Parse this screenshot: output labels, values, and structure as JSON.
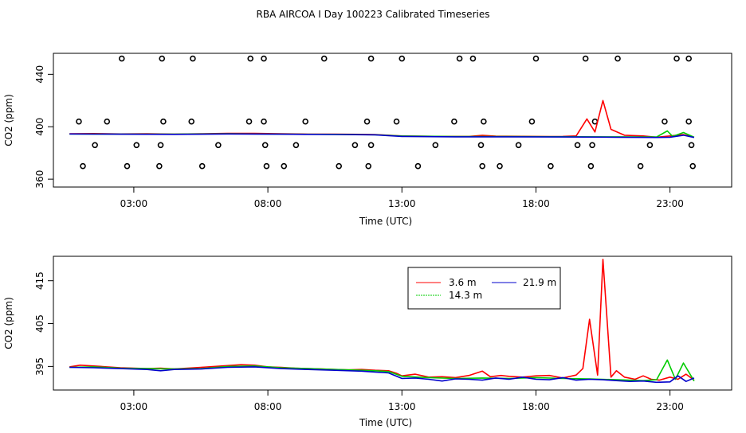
{
  "title": "RBA AIRCOA I  Day 100223  Calibrated Timeseries",
  "chart_data": [
    {
      "type": "line",
      "name": "top-panel",
      "xlabel": "Time (UTC)",
      "ylabel": "CO2 (ppm)",
      "xlim": [
        0,
        25.3
      ],
      "ylim": [
        354,
        456
      ],
      "xticks": [
        {
          "v": 3,
          "label": "03:00"
        },
        {
          "v": 8,
          "label": "08:00"
        },
        {
          "v": 13,
          "label": "13:00"
        },
        {
          "v": 18,
          "label": "18:00"
        },
        {
          "v": 23,
          "label": "23:00"
        }
      ],
      "yticks": [
        {
          "v": 360,
          "label": "360"
        },
        {
          "v": 400,
          "label": "400"
        },
        {
          "v": 440,
          "label": "440"
        }
      ],
      "series": [
        {
          "name": "3.6 m",
          "color": "#ff0000",
          "x": [
            0.6,
            1.5,
            2.5,
            3.5,
            4.5,
            5.5,
            6.5,
            7.5,
            8.5,
            9.5,
            10.5,
            11.5,
            12.0,
            12.5,
            13.0,
            13.5,
            14.5,
            15.5,
            16.0,
            16.5,
            17.5,
            18.5,
            19.0,
            19.5,
            19.9,
            20.2,
            20.5,
            20.8,
            21.3,
            22.0,
            22.5,
            23.0,
            23.5,
            23.9
          ],
          "y": [
            394.7,
            394.8,
            394.5,
            394.6,
            394.4,
            394.6,
            394.9,
            395.0,
            394.7,
            394.4,
            394.4,
            394.2,
            394.0,
            393.5,
            393.0,
            392.8,
            392.6,
            392.6,
            393.4,
            392.8,
            392.7,
            392.5,
            392.6,
            393.0,
            406.0,
            396.0,
            420.0,
            398.0,
            393.5,
            393.0,
            392.0,
            393.0,
            394.0,
            392.0
          ]
        },
        {
          "name": "14.3 m",
          "color": "#00cc00",
          "x": [
            0.6,
            2.5,
            4.5,
            6.5,
            8.5,
            10.5,
            12.0,
            13.0,
            15.0,
            17.0,
            19.0,
            21.0,
            22.5,
            22.9,
            23.1,
            23.5,
            23.9
          ],
          "y": [
            394.5,
            394.4,
            394.3,
            394.6,
            394.4,
            394.2,
            393.9,
            392.9,
            392.5,
            392.5,
            392.4,
            392.3,
            392.2,
            396.8,
            392.6,
            395.6,
            392.0
          ]
        },
        {
          "name": "21.9 m",
          "color": "#0000cc",
          "x": [
            0.6,
            2.5,
            4.5,
            6.5,
            8.5,
            10.5,
            12.0,
            13.0,
            15.0,
            17.0,
            19.0,
            21.0,
            22.5,
            23.0,
            23.5,
            23.9
          ],
          "y": [
            394.5,
            394.3,
            394.2,
            394.5,
            394.3,
            394.1,
            393.8,
            392.6,
            392.3,
            392.3,
            392.2,
            392.0,
            391.8,
            392.0,
            393.5,
            391.8
          ]
        }
      ],
      "points": {
        "name": "calibration-samples",
        "x": [
          0.95,
          2.0,
          4.1,
          5.15,
          7.3,
          7.85,
          9.4,
          11.7,
          12.8,
          14.95,
          16.05,
          17.85,
          20.2,
          22.8,
          23.7,
          1.55,
          3.1,
          4.0,
          6.15,
          7.9,
          9.05,
          11.25,
          11.85,
          14.25,
          15.95,
          17.35,
          19.55,
          20.1,
          22.25,
          23.8,
          1.1,
          2.75,
          3.95,
          5.55,
          7.95,
          8.6,
          10.65,
          11.75,
          13.6,
          16.0,
          16.65,
          18.55,
          20.05,
          21.9,
          23.85,
          2.55,
          4.05,
          5.2,
          7.35,
          7.85,
          10.1,
          11.85,
          13.0,
          15.15,
          15.65,
          18.0,
          19.85,
          21.05,
          23.25,
          23.7
        ],
        "y": [
          404,
          404,
          404,
          404,
          404,
          404,
          404,
          404,
          404,
          404,
          404,
          404,
          404,
          404,
          404,
          386,
          386,
          386,
          386,
          386,
          386,
          386,
          386,
          386,
          386,
          386,
          386,
          386,
          386,
          386,
          370,
          370,
          370,
          370,
          370,
          370,
          370,
          370,
          370,
          370,
          370,
          370,
          370,
          370,
          370,
          452,
          452,
          452,
          452,
          452,
          452,
          452,
          452,
          452,
          452,
          452,
          452,
          452,
          452,
          452
        ]
      }
    },
    {
      "type": "line",
      "name": "bottom-panel",
      "xlabel": "Time (UTC)",
      "ylabel": "CO2 (ppm)",
      "xlim": [
        0,
        25.3
      ],
      "ylim": [
        389.5,
        420.7
      ],
      "xticks": [
        {
          "v": 3,
          "label": "03:00"
        },
        {
          "v": 8,
          "label": "08:00"
        },
        {
          "v": 13,
          "label": "13:00"
        },
        {
          "v": 18,
          "label": "18:00"
        },
        {
          "v": 23,
          "label": "23:00"
        }
      ],
      "yticks": [
        {
          "v": 395,
          "label": "395"
        },
        {
          "v": 405,
          "label": "405"
        },
        {
          "v": 415,
          "label": "415"
        }
      ],
      "legend": {
        "position": "top-right",
        "entries": [
          "3.6 m",
          "21.9 m",
          "14.3 m"
        ]
      },
      "series": [
        {
          "name": "3.6 m",
          "color": "#ff0000",
          "x": [
            0.6,
            1.0,
            1.5,
            2.0,
            2.5,
            3.0,
            3.5,
            4.0,
            4.5,
            5.0,
            5.5,
            6.0,
            6.5,
            7.0,
            7.5,
            8.0,
            8.5,
            9.0,
            9.5,
            10.0,
            10.5,
            11.0,
            11.5,
            12.0,
            12.5,
            12.8,
            13.0,
            13.5,
            14.0,
            14.5,
            15.0,
            15.5,
            16.0,
            16.3,
            16.7,
            17.0,
            17.5,
            18.0,
            18.5,
            19.0,
            19.5,
            19.75,
            20.0,
            20.3,
            20.5,
            20.8,
            21.0,
            21.3,
            21.7,
            22.0,
            22.3,
            22.6,
            23.0,
            23.3,
            23.6,
            23.9
          ],
          "y": [
            394.9,
            395.3,
            395.1,
            394.9,
            394.7,
            394.6,
            394.5,
            394.6,
            394.4,
            394.6,
            394.8,
            395.0,
            395.2,
            395.4,
            395.3,
            394.9,
            394.8,
            394.6,
            394.5,
            394.4,
            394.3,
            394.2,
            394.3,
            394.1,
            394.0,
            393.4,
            392.8,
            393.2,
            392.5,
            392.6,
            392.4,
            392.9,
            393.9,
            392.6,
            392.9,
            392.7,
            392.5,
            392.8,
            392.9,
            392.3,
            393.0,
            394.5,
            406.0,
            393.0,
            420.0,
            392.5,
            394.0,
            392.5,
            392.0,
            392.8,
            392.0,
            391.8,
            392.5,
            392.0,
            393.2,
            391.8
          ]
        },
        {
          "name": "14.3 m",
          "color": "#00cc00",
          "x": [
            0.6,
            1.5,
            2.5,
            3.5,
            4.5,
            5.5,
            6.5,
            7.5,
            8.5,
            9.5,
            10.5,
            11.5,
            12.0,
            12.5,
            13.0,
            14.0,
            15.0,
            16.0,
            17.0,
            18.0,
            19.0,
            20.0,
            21.0,
            22.0,
            22.5,
            22.9,
            23.2,
            23.5,
            23.9
          ],
          "y": [
            394.8,
            394.9,
            394.6,
            394.5,
            394.4,
            394.5,
            395.0,
            395.1,
            394.7,
            394.5,
            394.3,
            394.1,
            394.0,
            393.8,
            392.7,
            392.4,
            392.2,
            392.3,
            392.2,
            392.4,
            392.2,
            392.1,
            391.9,
            391.7,
            391.9,
            396.5,
            392.0,
            395.8,
            391.6
          ]
        },
        {
          "name": "21.9 m",
          "color": "#0000cc",
          "x": [
            0.6,
            1.5,
            2.5,
            3.5,
            4.0,
            4.5,
            5.5,
            6.5,
            7.5,
            8.5,
            9.5,
            10.5,
            11.5,
            12.0,
            12.5,
            13.0,
            13.5,
            14.0,
            14.5,
            15.0,
            15.5,
            16.0,
            16.5,
            17.0,
            17.5,
            18.0,
            18.5,
            19.0,
            19.5,
            20.0,
            20.5,
            21.0,
            21.5,
            22.0,
            22.5,
            23.0,
            23.3,
            23.6,
            23.9
          ],
          "y": [
            394.8,
            394.7,
            394.5,
            394.3,
            394.0,
            394.3,
            394.4,
            394.8,
            394.9,
            394.5,
            394.3,
            394.1,
            393.9,
            393.7,
            393.5,
            392.2,
            392.3,
            392.0,
            391.6,
            392.1,
            392.0,
            391.8,
            392.3,
            392.0,
            392.5,
            392.0,
            391.9,
            392.4,
            391.8,
            392.0,
            391.9,
            391.7,
            391.5,
            391.6,
            391.3,
            391.4,
            392.8,
            391.5,
            392.3
          ]
        }
      ]
    }
  ]
}
